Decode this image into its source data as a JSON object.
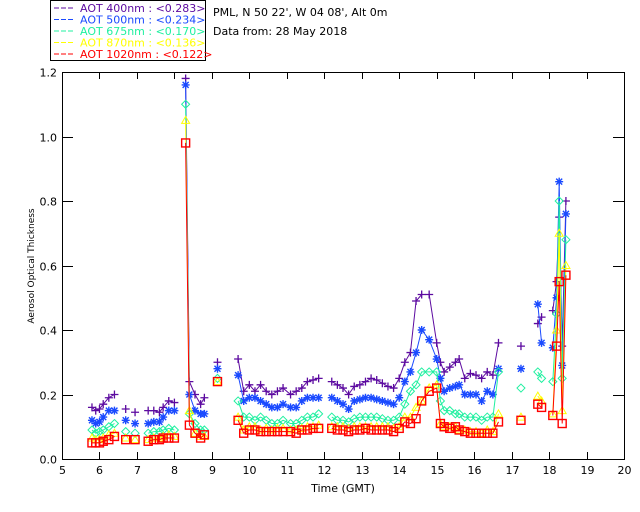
{
  "chart_data": {
    "type": "scatter",
    "title_lines": [
      "PML, N 50 22', W 04 08', Alt 0m",
      "Data from: 28 May 2018"
    ],
    "xlabel": "Time (GMT)",
    "ylabel": "Aerosol Optical Thickness",
    "xlim": [
      5,
      20
    ],
    "ylim": [
      0,
      1.2
    ],
    "xticks": [
      5,
      6,
      7,
      8,
      9,
      10,
      11,
      12,
      13,
      14,
      15,
      16,
      17,
      18,
      19,
      20
    ],
    "yticks": [
      0.0,
      0.2,
      0.4,
      0.6,
      0.8,
      1.0,
      1.2
    ],
    "ytick_labels": [
      "0.0",
      "0.2",
      "0.4",
      "0.6",
      "0.8",
      "1.0",
      "1.2"
    ],
    "legend_placement": "top-left, outside",
    "x": [
      5.8,
      5.9,
      6.0,
      6.1,
      6.25,
      6.4,
      6.7,
      6.95,
      7.3,
      7.45,
      7.6,
      7.7,
      7.85,
      8.0,
      8.3,
      8.4,
      8.55,
      8.7,
      8.8,
      9.15,
      9.7,
      9.85,
      10.0,
      10.15,
      10.3,
      10.45,
      10.6,
      10.75,
      10.9,
      11.1,
      11.25,
      11.4,
      11.55,
      11.7,
      11.85,
      12.2,
      12.35,
      12.5,
      12.65,
      12.8,
      12.95,
      13.1,
      13.25,
      13.4,
      13.55,
      13.7,
      13.85,
      14.0,
      14.15,
      14.3,
      14.45,
      14.6,
      14.8,
      15.0,
      15.1,
      15.2,
      15.35,
      15.5,
      15.6,
      15.75,
      15.9,
      16.05,
      16.2,
      16.35,
      16.5,
      16.65,
      17.25,
      17.7,
      17.8,
      18.1,
      18.2,
      18.27,
      18.35,
      18.45
    ],
    "series": [
      {
        "name": "AOT  400nm : <0.283>",
        "color": "#5c0aa0",
        "marker": "plus",
        "values": [
          0.16,
          0.15,
          0.155,
          0.17,
          0.19,
          0.2,
          0.155,
          0.145,
          0.15,
          0.15,
          0.145,
          0.16,
          0.18,
          0.175,
          1.18,
          0.24,
          0.2,
          0.17,
          0.19,
          0.3,
          0.31,
          0.21,
          0.23,
          0.21,
          0.23,
          0.21,
          0.2,
          0.21,
          0.22,
          0.2,
          0.21,
          0.22,
          0.24,
          0.245,
          0.25,
          0.24,
          0.23,
          0.22,
          0.2,
          0.225,
          0.23,
          0.24,
          0.25,
          0.245,
          0.235,
          0.225,
          0.22,
          0.25,
          0.3,
          0.33,
          0.49,
          0.51,
          0.51,
          0.36,
          0.3,
          0.27,
          0.285,
          0.3,
          0.31,
          0.25,
          0.265,
          0.26,
          0.25,
          0.27,
          0.26,
          0.36,
          0.35,
          0.42,
          0.44,
          0.46,
          0.55,
          0.75,
          0.35,
          0.8
        ]
      },
      {
        "name": "AOT  500nm : <0.234>",
        "color": "#1a4aff",
        "marker": "asterisk",
        "values": [
          0.12,
          0.11,
          0.115,
          0.13,
          0.15,
          0.15,
          0.12,
          0.11,
          0.11,
          0.115,
          0.115,
          0.13,
          0.15,
          0.15,
          1.16,
          0.2,
          0.15,
          0.14,
          0.14,
          0.28,
          0.26,
          0.18,
          0.19,
          0.19,
          0.18,
          0.17,
          0.16,
          0.16,
          0.17,
          0.16,
          0.16,
          0.18,
          0.19,
          0.19,
          0.19,
          0.19,
          0.18,
          0.17,
          0.155,
          0.18,
          0.185,
          0.19,
          0.19,
          0.185,
          0.18,
          0.175,
          0.17,
          0.19,
          0.24,
          0.27,
          0.33,
          0.4,
          0.37,
          0.31,
          0.25,
          0.21,
          0.22,
          0.225,
          0.23,
          0.2,
          0.2,
          0.2,
          0.18,
          0.21,
          0.2,
          0.28,
          0.28,
          0.48,
          0.36,
          0.345,
          0.5,
          0.86,
          0.29,
          0.76
        ]
      },
      {
        "name": "AOT  675nm : <0.170>",
        "color": "#20f0a0",
        "marker": "diamond",
        "values": [
          0.09,
          0.08,
          0.085,
          0.09,
          0.1,
          0.11,
          0.085,
          0.08,
          0.08,
          0.085,
          0.085,
          0.09,
          0.095,
          0.09,
          1.1,
          0.14,
          0.11,
          0.09,
          0.09,
          0.25,
          0.18,
          0.13,
          0.13,
          0.12,
          0.13,
          0.12,
          0.11,
          0.11,
          0.12,
          0.11,
          0.11,
          0.12,
          0.13,
          0.13,
          0.14,
          0.13,
          0.12,
          0.12,
          0.115,
          0.125,
          0.13,
          0.13,
          0.13,
          0.13,
          0.125,
          0.12,
          0.12,
          0.13,
          0.17,
          0.21,
          0.23,
          0.27,
          0.27,
          0.27,
          0.18,
          0.15,
          0.15,
          0.14,
          0.14,
          0.13,
          0.13,
          0.13,
          0.12,
          0.13,
          0.13,
          0.27,
          0.22,
          0.27,
          0.25,
          0.24,
          0.45,
          0.8,
          0.25,
          0.68
        ]
      },
      {
        "name": "AOT  870nm : <0.136>",
        "color": "#ffff00",
        "marker": "triangle",
        "values": [
          0.065,
          0.06,
          0.06,
          0.065,
          0.075,
          0.08,
          0.065,
          0.06,
          0.06,
          0.065,
          0.065,
          0.07,
          0.075,
          0.07,
          1.05,
          0.15,
          0.08,
          0.07,
          0.07,
          0.24,
          0.13,
          0.09,
          0.1,
          0.1,
          0.09,
          0.095,
          0.09,
          0.095,
          0.095,
          0.09,
          0.09,
          0.095,
          0.1,
          0.1,
          0.105,
          0.1,
          0.1,
          0.1,
          0.095,
          0.1,
          0.1,
          0.1,
          0.1,
          0.1,
          0.1,
          0.1,
          0.095,
          0.1,
          0.13,
          0.13,
          0.16,
          0.18,
          0.22,
          0.23,
          0.11,
          0.1,
          0.1,
          0.1,
          0.09,
          0.09,
          0.085,
          0.085,
          0.08,
          0.09,
          0.085,
          0.14,
          0.13,
          0.195,
          0.18,
          0.14,
          0.4,
          0.7,
          0.15,
          0.6
        ]
      },
      {
        "name": "AOT 1020nm : <0.122>",
        "color": "#ff0000",
        "marker": "square",
        "values": [
          0.05,
          0.05,
          0.05,
          0.055,
          0.06,
          0.07,
          0.06,
          0.06,
          0.055,
          0.06,
          0.06,
          0.065,
          0.065,
          0.065,
          0.98,
          0.105,
          0.08,
          0.065,
          0.075,
          0.24,
          0.12,
          0.08,
          0.09,
          0.09,
          0.085,
          0.085,
          0.085,
          0.085,
          0.085,
          0.085,
          0.08,
          0.09,
          0.09,
          0.095,
          0.095,
          0.095,
          0.09,
          0.09,
          0.085,
          0.09,
          0.09,
          0.095,
          0.09,
          0.09,
          0.09,
          0.09,
          0.085,
          0.095,
          0.115,
          0.11,
          0.125,
          0.18,
          0.21,
          0.22,
          0.11,
          0.1,
          0.095,
          0.1,
          0.09,
          0.085,
          0.08,
          0.08,
          0.08,
          0.08,
          0.08,
          0.115,
          0.12,
          0.17,
          0.16,
          0.135,
          0.35,
          0.55,
          0.11,
          0.57
        ]
      }
    ]
  }
}
